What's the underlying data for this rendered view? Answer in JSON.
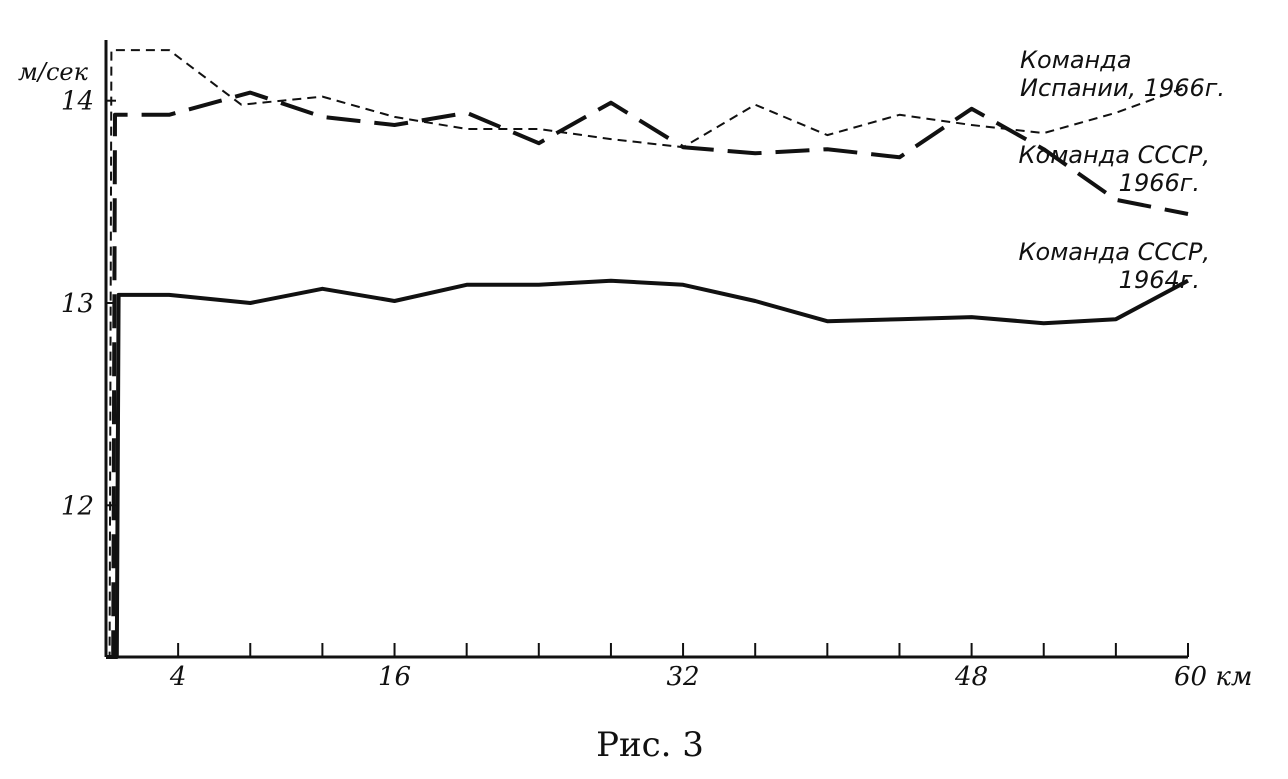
{
  "chart_data": {
    "type": "line",
    "caption": "Рис. 3",
    "ylabel": "м/сек",
    "xlabel": "км",
    "xlim": [
      0,
      60
    ],
    "ylim": [
      11.25,
      14.3
    ],
    "y_ticks": [
      12,
      13,
      14
    ],
    "x_ticks": [
      4,
      16,
      32,
      48,
      60
    ],
    "x_tick_labels": [
      "4",
      "16",
      "32",
      "48",
      "60 км"
    ],
    "minor_x_ticks": [
      4,
      8,
      12,
      16,
      20,
      24,
      28,
      32,
      36,
      40,
      44,
      48,
      52,
      56,
      60
    ],
    "grid": false,
    "series": [
      {
        "name": "Команда Испании, 1966г.",
        "label_lines": [
          "Команда",
          "Испании, 1966г."
        ],
        "style": "short-dash",
        "x": [
          0,
          0.2,
          0.3,
          3.5,
          7.5,
          12,
          16,
          20,
          24,
          28,
          32,
          36,
          40,
          44,
          48,
          52,
          56,
          60
        ],
        "y": [
          11.25,
          11.25,
          14.25,
          14.25,
          13.98,
          14.02,
          13.92,
          13.86,
          13.86,
          13.81,
          13.77,
          13.98,
          13.83,
          13.93,
          13.88,
          13.84,
          13.94,
          14.07
        ]
      },
      {
        "name": "Команда СССР, 1966г.",
        "label_lines": [
          "Команда СССР,",
          "1966г."
        ],
        "style": "long-dash",
        "x": [
          0,
          0.4,
          0.5,
          3.5,
          8,
          12,
          16,
          20,
          24,
          28,
          32,
          36,
          40,
          44,
          48,
          52,
          56,
          60
        ],
        "y": [
          11.25,
          11.25,
          13.93,
          13.93,
          14.04,
          13.92,
          13.88,
          13.94,
          13.79,
          13.99,
          13.77,
          13.74,
          13.76,
          13.72,
          13.96,
          13.76,
          13.51,
          13.44
        ]
      },
      {
        "name": "Команда СССР, 1964г.",
        "label_lines": [
          "Команда СССР,",
          "1964г."
        ],
        "style": "solid",
        "x": [
          0,
          0.6,
          0.7,
          3.5,
          8,
          12,
          16,
          20,
          24,
          28,
          32,
          36,
          40,
          44,
          48,
          52,
          56,
          60
        ],
        "y": [
          11.25,
          11.25,
          13.04,
          13.04,
          13.0,
          13.07,
          13.01,
          13.09,
          13.09,
          13.11,
          13.09,
          13.01,
          12.91,
          12.92,
          12.93,
          12.9,
          12.92,
          13.11
        ]
      }
    ]
  }
}
